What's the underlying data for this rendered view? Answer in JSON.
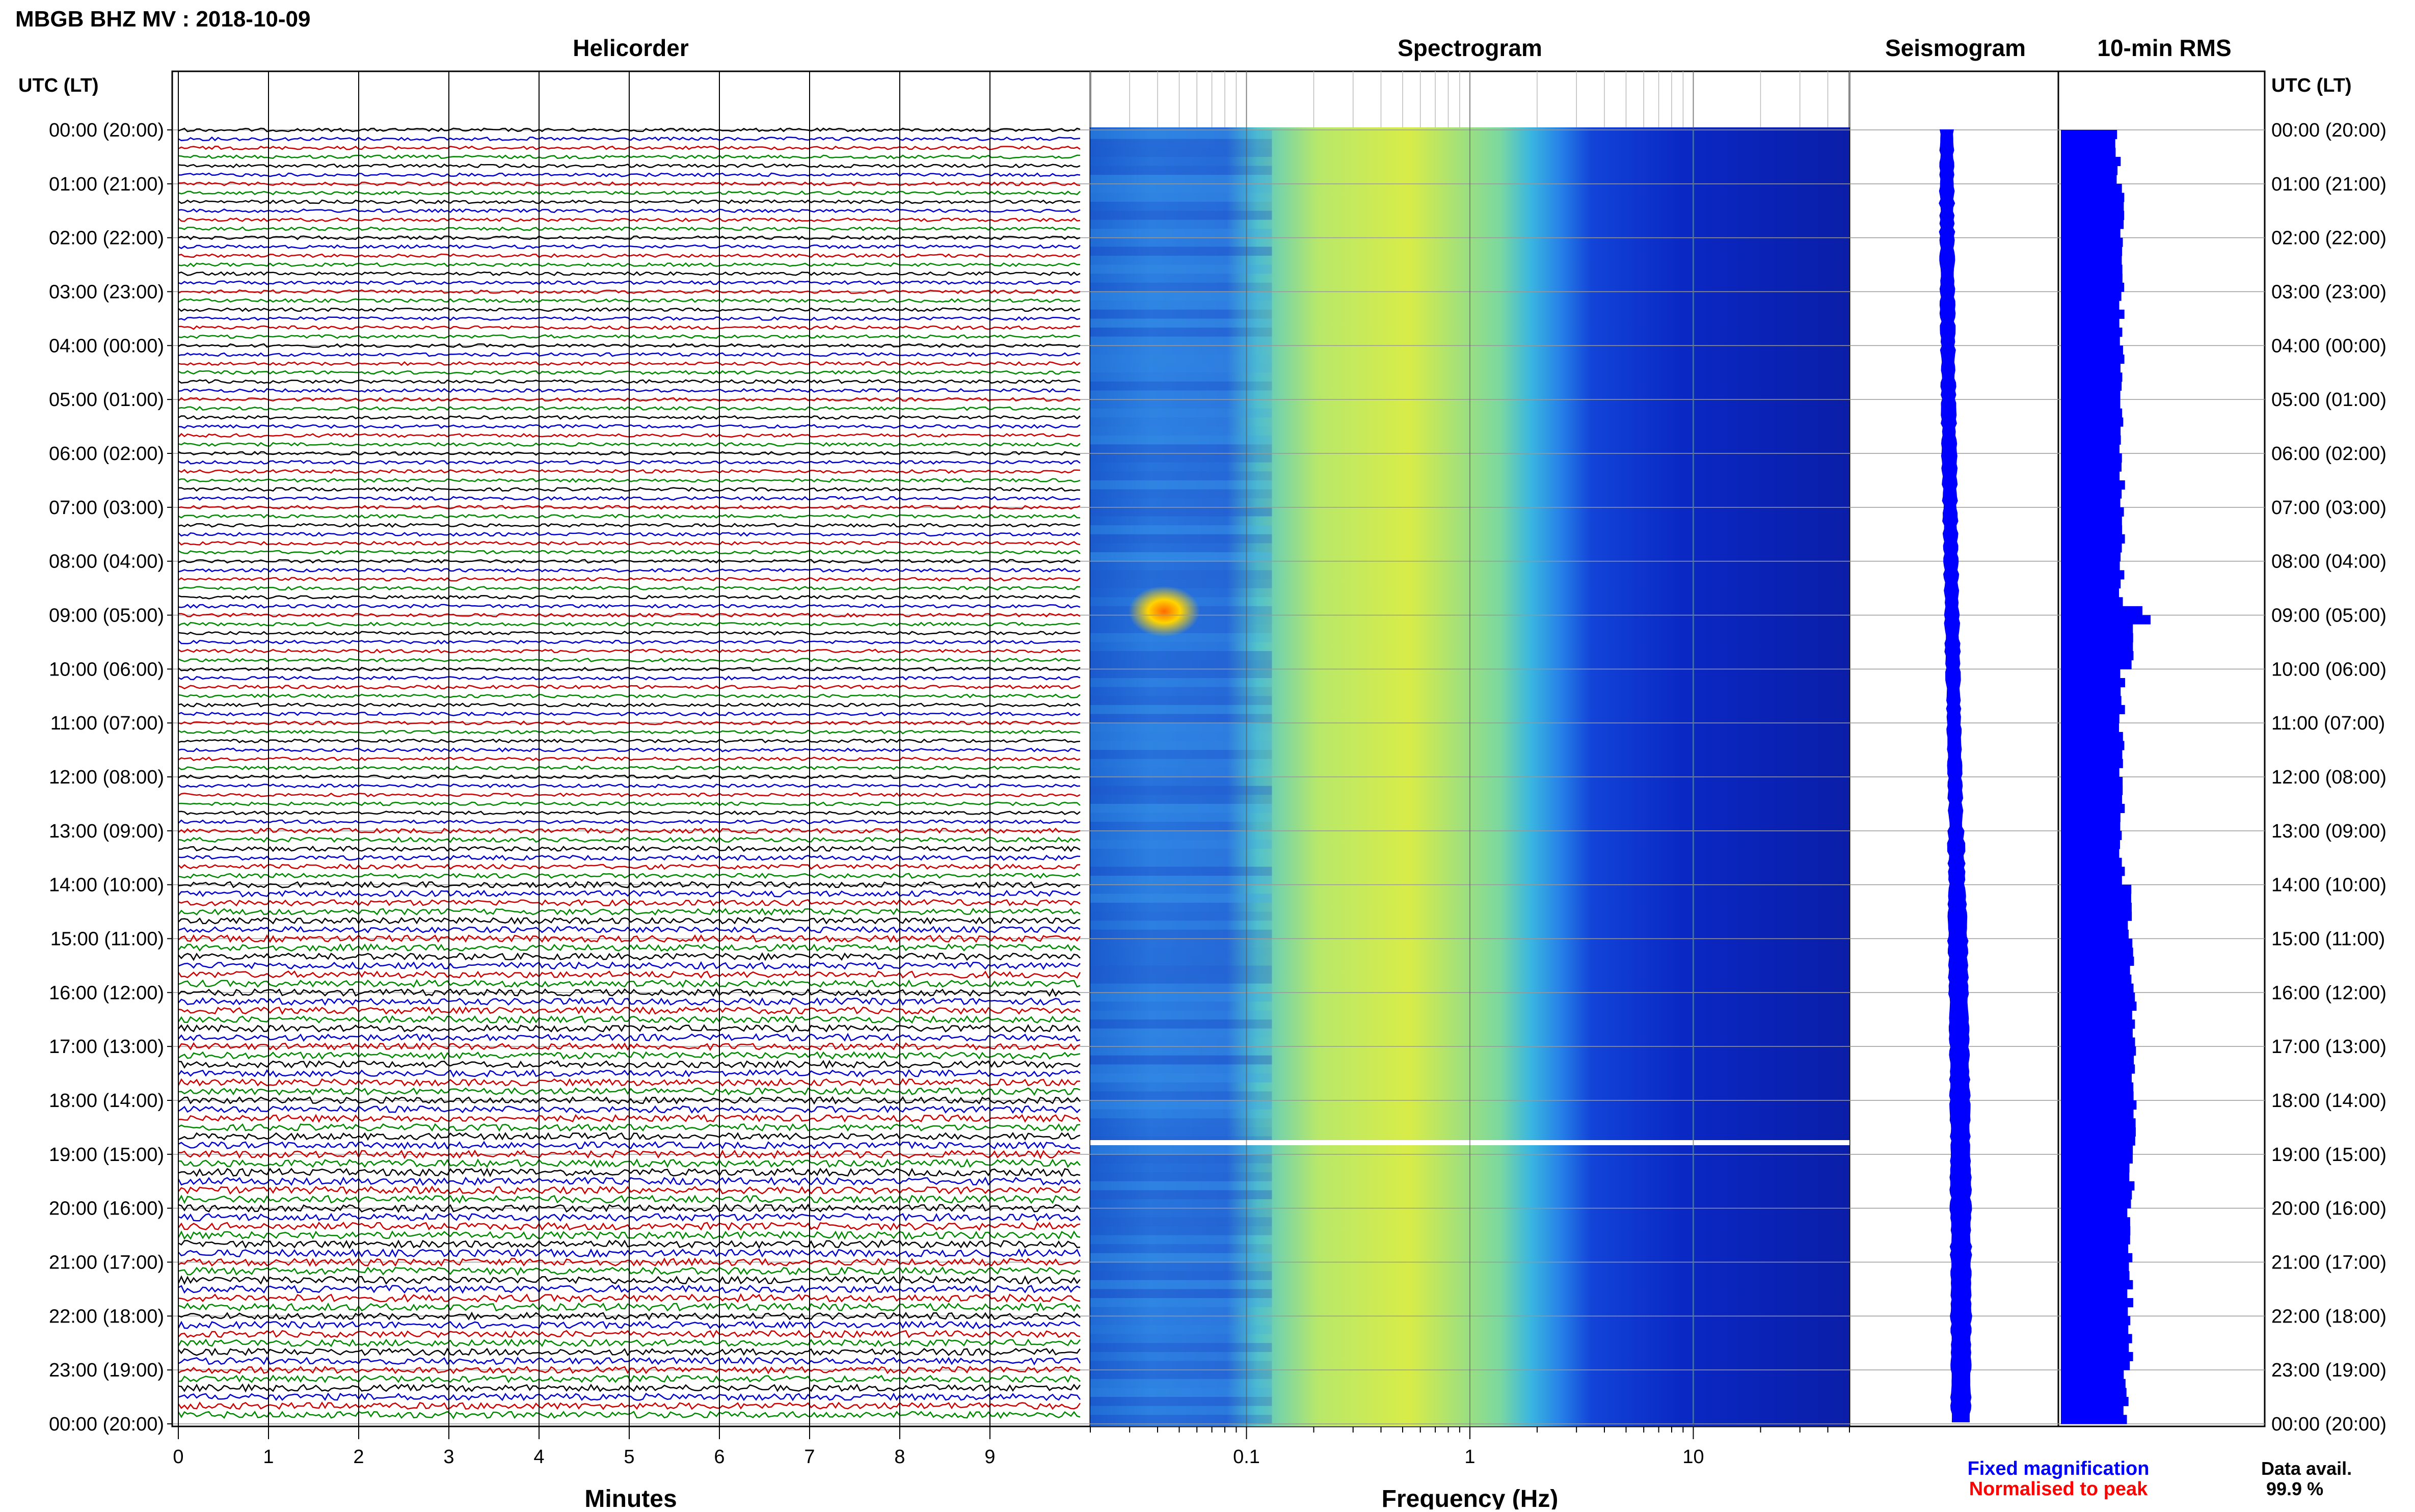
{
  "title": "MBGB BHZ MV : 2018-10-09",
  "panels": {
    "helicorder": "Helicorder",
    "spectrogram": "Spectrogram",
    "seismogram": "Seismogram",
    "rms": "10-min RMS"
  },
  "axis_header": "UTC (LT)",
  "time_labels": [
    "00:00 (20:00)",
    "01:00 (21:00)",
    "02:00 (22:00)",
    "03:00 (23:00)",
    "04:00 (00:00)",
    "05:00 (01:00)",
    "06:00 (02:00)",
    "07:00 (03:00)",
    "08:00 (04:00)",
    "09:00 (05:00)",
    "10:00 (06:00)",
    "11:00 (07:00)",
    "12:00 (08:00)",
    "13:00 (09:00)",
    "14:00 (10:00)",
    "15:00 (11:00)",
    "16:00 (12:00)",
    "17:00 (13:00)",
    "18:00 (14:00)",
    "19:00 (15:00)",
    "20:00 (16:00)",
    "21:00 (17:00)",
    "22:00 (18:00)",
    "23:00 (19:00)",
    "00:00 (20:00)"
  ],
  "legend": {
    "fixed": "Fixed magnification",
    "normalised": "Normalised to peak",
    "fixed_color": "#0000ff",
    "normalised_color": "#ff0000"
  },
  "data_avail": {
    "label": "Data avail.",
    "value": "99.9 %"
  },
  "chart_data": [
    {
      "type": "line",
      "name": "helicorder",
      "title": "Helicorder",
      "xlabel": "Minutes",
      "xlim": [
        0,
        10
      ],
      "xticks": [
        0,
        1,
        2,
        3,
        4,
        5,
        6,
        7,
        8,
        9
      ],
      "rows_per_hour": 6,
      "hours": 24,
      "trace_colors": [
        "#000000",
        "#0000cc",
        "#cc0000",
        "#008800"
      ],
      "activity_profile": [
        1,
        1,
        1,
        1,
        1,
        1,
        1,
        1,
        1,
        1,
        1,
        1,
        1,
        1.4,
        1.8,
        2,
        2,
        2,
        2,
        2.2,
        2.2,
        2.2,
        2,
        2
      ]
    },
    {
      "type": "heatmap",
      "name": "spectrogram",
      "title": "Spectrogram",
      "xlabel": "Frequency (Hz)",
      "xscale": "log",
      "xlim": [
        0.02,
        50
      ],
      "xticks": [
        0.1,
        1,
        10
      ],
      "xticklabels": [
        "0.1",
        "1",
        "10"
      ],
      "gap_hour": 18.75
    },
    {
      "type": "line",
      "name": "seismogram",
      "title": "Seismogram"
    },
    {
      "type": "bar",
      "name": "rms",
      "title": "10-min RMS",
      "color": "#0000ff",
      "hourly_rms": [
        0.28,
        0.3,
        0.3,
        0.3,
        0.3,
        0.3,
        0.3,
        0.3,
        0.3,
        0.36,
        0.3,
        0.3,
        0.3,
        0.3,
        0.34,
        0.35,
        0.36,
        0.36,
        0.36,
        0.35,
        0.34,
        0.34,
        0.34,
        0.32
      ]
    }
  ]
}
